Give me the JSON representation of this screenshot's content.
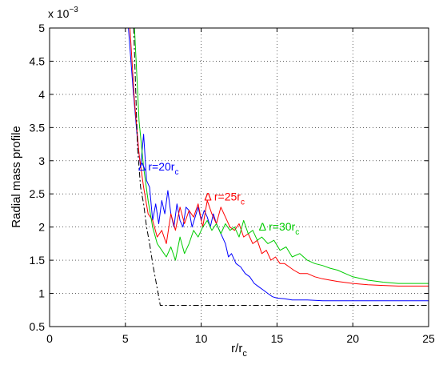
{
  "chart_data": {
    "type": "line",
    "xlabel": "r/r",
    "xlabel_sub": "c",
    "ylabel": "Radial mass profile",
    "exponent_label": "x 10",
    "exponent_power": "−3",
    "xlim": [
      0,
      25
    ],
    "ylim": [
      0.5,
      5
    ],
    "xticks": [
      0,
      5,
      10,
      15,
      20,
      25
    ],
    "yticks": [
      0.5,
      1,
      1.5,
      2,
      2.5,
      3,
      3.5,
      4,
      4.5,
      5
    ],
    "grid": true,
    "annotations": [
      {
        "prefix": "Δ r=20r",
        "sub": "c",
        "color": "#0000ff",
        "x": 5.85,
        "y": 2.85
      },
      {
        "prefix": "Δ r=25r",
        "sub": "c",
        "color": "#ff0000",
        "x": 10.2,
        "y": 2.4
      },
      {
        "prefix": "Δ r=30r",
        "sub": "c",
        "color": "#00cc00",
        "x": 13.8,
        "y": 1.95
      }
    ],
    "series": [
      {
        "color": "#0000ff",
        "dash": "",
        "x": [
          5.2,
          5.5,
          5.8,
          6.0,
          6.2,
          6.4,
          6.6,
          6.8,
          7.0,
          7.2,
          7.4,
          7.6,
          7.8,
          8.0,
          8.2,
          8.4,
          8.6,
          8.8,
          9.0,
          9.2,
          9.4,
          9.6,
          9.8,
          10.0,
          10.2,
          10.4,
          10.6,
          10.8,
          11.0,
          11.2,
          11.4,
          11.6,
          11.8,
          12.0,
          12.3,
          12.6,
          12.9,
          13.2,
          13.5,
          13.8,
          14.1,
          14.4,
          14.7,
          15.0,
          15.5,
          16.0,
          17.0,
          18.0,
          20.0,
          22.0,
          25.0
        ],
        "y": [
          5.0,
          4.1,
          3.3,
          2.9,
          3.4,
          2.7,
          2.6,
          2.1,
          2.35,
          2.05,
          2.4,
          2.2,
          2.55,
          2.2,
          2.0,
          2.35,
          2.1,
          2.0,
          2.3,
          2.25,
          2.0,
          2.15,
          2.3,
          2.1,
          2.25,
          2.15,
          2.0,
          2.2,
          2.05,
          1.95,
          1.85,
          1.75,
          1.55,
          1.6,
          1.45,
          1.4,
          1.3,
          1.25,
          1.15,
          1.1,
          1.05,
          1.0,
          0.95,
          0.93,
          0.92,
          0.9,
          0.9,
          0.89,
          0.89,
          0.89,
          0.89
        ]
      },
      {
        "color": "#ff0000",
        "dash": "",
        "x": [
          5.3,
          5.6,
          5.9,
          6.2,
          6.5,
          6.8,
          7.1,
          7.4,
          7.7,
          8.0,
          8.3,
          8.6,
          8.9,
          9.2,
          9.5,
          9.8,
          10.1,
          10.4,
          10.7,
          11.0,
          11.3,
          11.6,
          11.9,
          12.2,
          12.5,
          12.8,
          13.1,
          13.4,
          13.7,
          14.0,
          14.3,
          14.6,
          14.9,
          15.2,
          15.5,
          15.8,
          16.1,
          16.5,
          17.0,
          17.5,
          18.0,
          18.5,
          19.0,
          20.0,
          21.0,
          22.0,
          23.0,
          25.0
        ],
        "y": [
          5.0,
          3.9,
          3.1,
          2.6,
          2.2,
          2.1,
          1.85,
          1.95,
          1.75,
          2.2,
          1.95,
          2.3,
          2.05,
          2.25,
          2.15,
          2.35,
          2.0,
          2.4,
          2.2,
          2.05,
          2.3,
          2.15,
          2.0,
          1.95,
          2.05,
          1.85,
          1.9,
          1.75,
          1.8,
          1.6,
          1.65,
          1.5,
          1.55,
          1.45,
          1.45,
          1.4,
          1.35,
          1.3,
          1.3,
          1.25,
          1.22,
          1.2,
          1.18,
          1.15,
          1.13,
          1.12,
          1.11,
          1.11
        ]
      },
      {
        "color": "#00cc00",
        "dash": "",
        "x": [
          5.6,
          5.9,
          6.2,
          6.5,
          6.8,
          7.1,
          7.4,
          7.7,
          8.0,
          8.3,
          8.6,
          8.9,
          9.2,
          9.5,
          9.8,
          10.1,
          10.4,
          10.7,
          11.0,
          11.3,
          11.6,
          11.9,
          12.2,
          12.5,
          12.8,
          13.1,
          13.4,
          13.7,
          14.0,
          14.4,
          14.8,
          15.2,
          15.6,
          16.0,
          16.5,
          17.0,
          17.5,
          18.0,
          18.5,
          19.0,
          19.5,
          20.0,
          21.0,
          22.0,
          23.0,
          24.0,
          25.0
        ],
        "y": [
          5.0,
          3.6,
          2.9,
          2.4,
          2.0,
          1.75,
          1.65,
          1.55,
          1.7,
          1.5,
          1.85,
          1.6,
          1.75,
          1.95,
          1.85,
          2.0,
          2.1,
          1.95,
          2.05,
          1.9,
          2.05,
          1.95,
          2.0,
          1.85,
          2.1,
          1.9,
          1.95,
          1.8,
          1.85,
          1.75,
          1.8,
          1.65,
          1.7,
          1.55,
          1.6,
          1.5,
          1.45,
          1.42,
          1.38,
          1.35,
          1.3,
          1.25,
          1.2,
          1.17,
          1.15,
          1.15,
          1.15
        ]
      },
      {
        "color": "#000000",
        "dash": "7,3,2,3",
        "x": [
          5.55,
          5.8,
          6.0,
          6.2,
          6.4,
          6.6,
          6.8,
          7.0,
          7.2,
          7.3,
          8.0,
          10.0,
          15.0,
          20.0,
          25.0
        ],
        "y": [
          5.0,
          3.2,
          2.6,
          2.35,
          2.0,
          1.75,
          1.45,
          1.2,
          0.95,
          0.82,
          0.82,
          0.82,
          0.82,
          0.82,
          0.82
        ]
      }
    ]
  }
}
